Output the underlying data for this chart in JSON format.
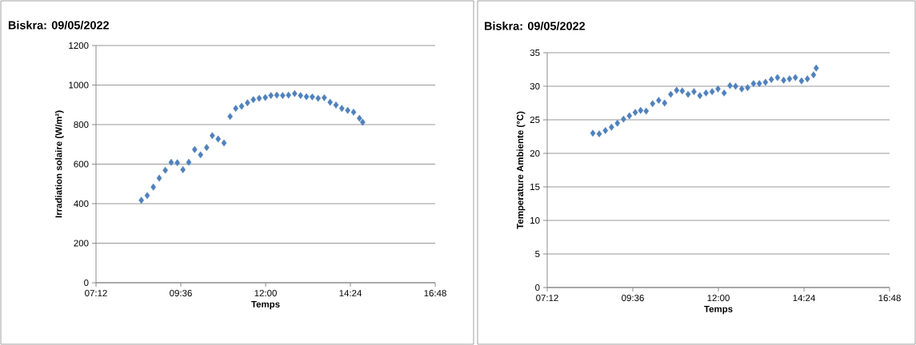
{
  "chart_data": [
    {
      "type": "scatter",
      "title": "Biskra: 09/05/2022",
      "xlabel": "Temps",
      "ylabel": "Irradiation solaire    (W/m²)",
      "marker": "diamond",
      "grid": "y",
      "legend": false,
      "xlim": [
        7.2,
        16.8
      ],
      "xticks": [
        {
          "value": 7.2,
          "label": "07:12"
        },
        {
          "value": 9.6,
          "label": "09:36"
        },
        {
          "value": 12,
          "label": "12:00"
        },
        {
          "value": 14.4,
          "label": "14:24"
        },
        {
          "value": 16.8,
          "label": "16:48"
        }
      ],
      "ylim": [
        0,
        1200
      ],
      "yticks": [
        0,
        200,
        400,
        600,
        800,
        1000,
        1200
      ],
      "series": [
        {
          "color": "#4f81bd",
          "x": [
            8.483,
            8.649,
            8.823,
            8.989,
            9.162,
            9.328,
            9.502,
            9.66,
            9.826,
            9.993,
            10.159,
            10.332,
            10.491,
            10.657,
            10.823,
            10.996,
            11.155,
            11.321,
            11.487,
            11.653,
            11.819,
            11.992,
            12.151,
            12.317,
            12.483,
            12.649,
            12.822,
            12.989,
            13.155,
            13.321,
            13.487,
            13.66,
            13.826,
            13.992,
            14.158,
            14.324,
            14.49,
            14.656,
            14.747
          ],
          "values": [
            417,
            441,
            484,
            529,
            569,
            609,
            607,
            572,
            609,
            674,
            647,
            684,
            744,
            727,
            707,
            841,
            882,
            893,
            910,
            926,
            933,
            937,
            947,
            949,
            947,
            949,
            957,
            947,
            941,
            940,
            933,
            936,
            913,
            899,
            882,
            872,
            863,
            832,
            812
          ]
        }
      ]
    },
    {
      "type": "scatter",
      "title": "Biskra: 09/05/2022",
      "xlabel": "Temps",
      "ylabel": "Temperature Ambiente    (°C)",
      "marker": "diamond",
      "grid": "y",
      "legend": false,
      "xlim": [
        7.2,
        16.8
      ],
      "xticks": [
        {
          "value": 7.2,
          "label": "07:12"
        },
        {
          "value": 9.6,
          "label": "09:36"
        },
        {
          "value": 12,
          "label": "12:00"
        },
        {
          "value": 14.4,
          "label": "14:24"
        },
        {
          "value": 16.8,
          "label": "16:48"
        }
      ],
      "ylim": [
        0,
        35
      ],
      "yticks": [
        0,
        5,
        10,
        15,
        20,
        25,
        30,
        35
      ],
      "series": [
        {
          "color": "#4f81bd",
          "x": [
            8.479,
            8.659,
            8.831,
            9.003,
            9.168,
            9.34,
            9.504,
            9.669,
            9.819,
            9.976,
            10.155,
            10.327,
            10.492,
            10.664,
            10.829,
            10.986,
            11.15,
            11.315,
            11.48,
            11.652,
            11.824,
            11.989,
            12.161,
            12.325,
            12.482,
            12.655,
            12.819,
            12.984,
            13.148,
            13.32,
            13.485,
            13.657,
            13.829,
            13.994,
            14.158,
            14.33,
            14.495,
            14.667,
            14.742
          ],
          "values": [
            23.0,
            22.9,
            23.4,
            23.9,
            24.5,
            25.1,
            25.6,
            26.1,
            26.4,
            26.3,
            27.4,
            27.9,
            27.5,
            28.8,
            29.4,
            29.3,
            28.8,
            29.2,
            28.6,
            29.0,
            29.2,
            29.6,
            29.0,
            30.1,
            30.0,
            29.6,
            29.8,
            30.4,
            30.4,
            30.6,
            31.0,
            31.3,
            30.9,
            31.1,
            31.3,
            30.8,
            31.1,
            31.7,
            32.7
          ]
        }
      ]
    }
  ]
}
